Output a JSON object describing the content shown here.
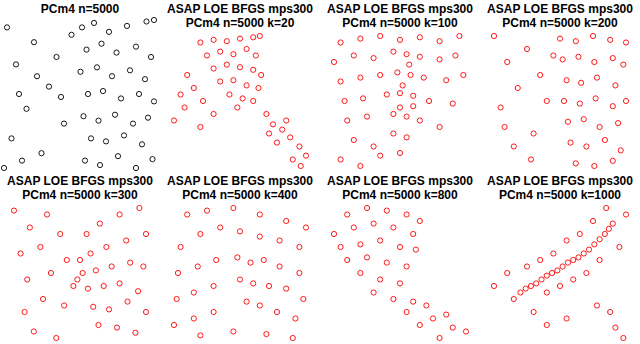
{
  "chart_data": [
    {
      "type": "scatter",
      "title": "PCm4 n=5000",
      "color": "#000000",
      "marker": "circle",
      "tick_labels": false,
      "xlim": [
        0,
        100
      ],
      "ylim": [
        0,
        100
      ],
      "x": [
        2,
        8,
        15,
        5,
        20,
        25,
        30,
        35,
        40,
        12,
        45,
        38,
        22,
        10,
        52,
        60,
        70,
        82,
        95,
        55,
        65,
        75,
        88,
        98,
        51,
        62,
        72,
        84,
        94,
        56,
        66,
        78,
        90,
        100,
        53,
        63,
        74,
        86,
        96,
        58,
        68,
        80,
        92,
        54,
        64,
        76,
        88,
        99,
        0,
        100
      ],
      "values": [
        95,
        70,
        40,
        20,
        85,
        10,
        55,
        75,
        30,
        5,
        90,
        48,
        62,
        50,
        95,
        98,
        92,
        96,
        99,
        80,
        84,
        78,
        82,
        75,
        65,
        68,
        62,
        66,
        60,
        50,
        52,
        47,
        50,
        45,
        35,
        32,
        36,
        30,
        34,
        20,
        18,
        22,
        16,
        5,
        2,
        8,
        0,
        6,
        0,
        100
      ]
    },
    {
      "type": "scatter",
      "title": "ASAP LOE BFGS mps300",
      "subtitle": "PCm4 n=5000 k=20",
      "color": "#ff0000",
      "marker": "circle",
      "tick_labels": false,
      "xlim": [
        0,
        100
      ],
      "ylim": [
        0,
        100
      ],
      "x": [
        20,
        30,
        40,
        50,
        60,
        65,
        25,
        35,
        45,
        55,
        62,
        30,
        40,
        50,
        60,
        66,
        35,
        45,
        55,
        64,
        42,
        52,
        60,
        48,
        10,
        5,
        0,
        8,
        15,
        22,
        30,
        20,
        70,
        75,
        82,
        88,
        95,
        100,
        78,
        90,
        85,
        72,
        96
      ],
      "values": [
        95,
        97,
        96,
        98,
        99,
        100,
        85,
        88,
        86,
        90,
        85,
        75,
        78,
        76,
        74,
        70,
        65,
        66,
        62,
        60,
        55,
        52,
        50,
        45,
        70,
        55,
        35,
        45,
        60,
        50,
        40,
        30,
        40,
        32,
        28,
        22,
        15,
        8,
        18,
        5,
        35,
        25,
        0
      ]
    },
    {
      "type": "scatter",
      "title": "ASAP LOE BFGS mps300",
      "subtitle": "PCm4 n=5000 k=100",
      "color": "#ff0000",
      "marker": "circle",
      "tick_labels": false,
      "xlim": [
        0,
        100
      ],
      "ylim": [
        0,
        100
      ],
      "x": [
        5,
        20,
        35,
        50,
        65,
        80,
        95,
        0,
        15,
        30,
        45,
        55,
        65,
        80,
        92,
        5,
        20,
        35,
        48,
        58,
        68,
        85,
        98,
        8,
        22,
        40,
        50,
        60,
        72,
        90,
        10,
        25,
        45,
        55,
        65,
        80,
        15,
        30,
        45,
        55,
        5,
        20,
        35,
        50,
        52,
        57,
        50,
        60
      ],
      "values": [
        95,
        98,
        100,
        97,
        99,
        96,
        100,
        80,
        85,
        83,
        88,
        86,
        84,
        82,
        85,
        65,
        68,
        70,
        72,
        70,
        68,
        66,
        70,
        50,
        52,
        55,
        56,
        54,
        50,
        48,
        35,
        38,
        40,
        38,
        35,
        30,
        20,
        15,
        25,
        22,
        5,
        0,
        8,
        10,
        62,
        78,
        45,
        46
      ]
    },
    {
      "type": "scatter",
      "title": "ASAP LOE BFGS mps300",
      "subtitle": "PCm4 n=5000 k=200",
      "color": "#ff0000",
      "marker": "circle",
      "tick_labels": false,
      "xlim": [
        0,
        100
      ],
      "ylim": [
        0,
        100
      ],
      "x": [
        0,
        10,
        18,
        5,
        25,
        30,
        35,
        15,
        40,
        8,
        28,
        45,
        50,
        62,
        75,
        88,
        100,
        52,
        64,
        76,
        90,
        98,
        55,
        66,
        78,
        92,
        53,
        65,
        77,
        90,
        100,
        56,
        68,
        80,
        94,
        58,
        70,
        84,
        96,
        62,
        76,
        90
      ],
      "values": [
        100,
        80,
        60,
        45,
        90,
        25,
        70,
        15,
        50,
        30,
        5,
        85,
        98,
        96,
        100,
        97,
        95,
        82,
        84,
        80,
        83,
        78,
        66,
        64,
        68,
        62,
        50,
        48,
        52,
        46,
        50,
        34,
        36,
        30,
        33,
        18,
        15,
        20,
        12,
        2,
        0,
        4
      ]
    },
    {
      "type": "scatter",
      "title": "ASAP LOE BFGS mps300",
      "subtitle": "PCm4 n=5000 k=300",
      "color": "#ff0000",
      "marker": "circle",
      "tick_labels": false,
      "xlim": [
        0,
        100
      ],
      "ylim": [
        0,
        100
      ],
      "x": [
        0,
        12,
        25,
        5,
        20,
        35,
        10,
        28,
        40,
        8,
        22,
        38,
        15,
        32,
        45,
        55,
        65,
        80,
        95,
        58,
        70,
        85,
        100,
        52,
        62,
        74,
        88,
        98,
        56,
        68,
        80,
        94,
        60,
        72,
        86,
        100,
        64,
        78,
        92,
        50,
        48
      ],
      "values": [
        98,
        85,
        95,
        65,
        70,
        80,
        45,
        50,
        60,
        20,
        30,
        25,
        5,
        0,
        40,
        80,
        88,
        95,
        100,
        65,
        70,
        75,
        80,
        50,
        52,
        55,
        58,
        55,
        38,
        40,
        42,
        36,
        24,
        22,
        28,
        20,
        10,
        8,
        4,
        60,
        45
      ]
    },
    {
      "type": "scatter",
      "title": "ASAP LOE BFGS mps300",
      "subtitle": "PCm4 n=5000 k=400",
      "color": "#ff0000",
      "marker": "circle",
      "tick_labels": false,
      "xlim": [
        0,
        100
      ],
      "ylim": [
        0,
        100
      ],
      "x": [
        10,
        25,
        45,
        65,
        85,
        100,
        5,
        20,
        35,
        50,
        65,
        80,
        95,
        3,
        18,
        32,
        48,
        58,
        68,
        80,
        95,
        2,
        15,
        30,
        50,
        60,
        72,
        85,
        98,
        0,
        15,
        30,
        55,
        65,
        78,
        92,
        20,
        45,
        70,
        90
      ],
      "values": [
        95,
        98,
        100,
        95,
        90,
        85,
        70,
        80,
        85,
        82,
        78,
        75,
        70,
        50,
        55,
        60,
        62,
        58,
        60,
        55,
        50,
        30,
        35,
        40,
        45,
        42,
        40,
        38,
        30,
        10,
        15,
        20,
        28,
        25,
        20,
        15,
        2,
        5,
        3,
        0
      ]
    },
    {
      "type": "scatter",
      "title": "ASAP LOE BFGS mps300",
      "subtitle": "PCm4 n=5000 k=800",
      "color": "#ff0000",
      "marker": "circle",
      "tick_labels": false,
      "xlim": [
        0,
        100
      ],
      "ylim": [
        0,
        100
      ],
      "x": [
        10,
        25,
        40,
        55,
        65,
        0,
        15,
        30,
        45,
        60,
        5,
        20,
        35,
        50,
        62,
        10,
        25,
        40,
        55,
        20,
        35,
        50,
        30,
        45,
        60,
        55,
        70,
        75,
        85,
        90,
        100,
        80,
        65
      ],
      "values": [
        95,
        100,
        98,
        95,
        90,
        80,
        85,
        88,
        85,
        80,
        70,
        72,
        75,
        70,
        68,
        60,
        62,
        58,
        55,
        50,
        45,
        42,
        35,
        30,
        28,
        20,
        25,
        15,
        18,
        8,
        5,
        0,
        10
      ]
    },
    {
      "type": "scatter",
      "title": "ASAP LOE BFGS mps300",
      "subtitle": "PCm4 n=5000 k=1000",
      "color": "#ff0000",
      "marker": "circle",
      "tick_labels": false,
      "xlim": [
        0,
        100
      ],
      "ylim": [
        0,
        100
      ],
      "x": [
        20,
        28,
        36,
        44,
        52,
        60,
        68,
        76,
        84,
        90,
        0,
        10,
        15,
        25,
        30,
        35,
        40,
        45,
        50,
        55,
        60,
        65,
        70,
        75,
        80,
        85,
        95,
        100,
        78,
        88,
        92,
        98,
        55,
        40,
        24,
        32,
        40,
        48,
        56,
        64,
        72,
        80,
        87
      ],
      "values": [
        35,
        40,
        45,
        50,
        55,
        60,
        65,
        72,
        80,
        88,
        40,
        50,
        30,
        55,
        20,
        60,
        35,
        65,
        40,
        75,
        45,
        80,
        50,
        90,
        60,
        100,
        70,
        95,
        25,
        20,
        8,
        0,
        15,
        10,
        38,
        42,
        48,
        52,
        58,
        62,
        68,
        76,
        84
      ]
    }
  ]
}
